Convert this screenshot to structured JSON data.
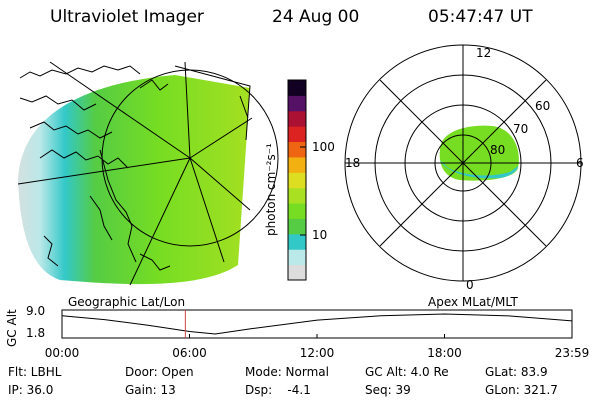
{
  "header": {
    "instrument": "Ultraviolet Imager",
    "date": "24 Aug 00",
    "time": "05:47:47 UT"
  },
  "colorbar": {
    "unit_label": "photon cm⁻²s⁻¹",
    "tick_labels": [
      "100",
      "10"
    ],
    "colors": [
      "#dddddd",
      "#bbe8e8",
      "#33c8c8",
      "#55cc44",
      "#77dd22",
      "#aae022",
      "#dddd22",
      "#f2b011",
      "#ee6611",
      "#dd2222",
      "#aa1133",
      "#551166",
      "#110022"
    ]
  },
  "geo_map": {
    "label": "Geographic Lat/Lon",
    "fill_color": "#77dd22",
    "low_color": "#33c8c8"
  },
  "polar_map": {
    "label": "Apex MLat/MLT",
    "mlt_labels": {
      "top": "12",
      "right": "6",
      "bottom": "0",
      "left": "18"
    },
    "lat_labels": [
      "60",
      "70",
      "80"
    ]
  },
  "altitude_plot": {
    "y_label": "GC Alt",
    "y_ticks": [
      "9.0",
      "1.8"
    ],
    "x_ticks": [
      "00:00",
      "06:00",
      "12:00",
      "18:00",
      "23:59"
    ],
    "marker_color": "#cc4444"
  },
  "chart_data": {
    "type": "line",
    "title": "",
    "xlabel": "",
    "ylabel": "GC Alt",
    "x": [
      0,
      2,
      4,
      6,
      7.2,
      9,
      12,
      15,
      18,
      21,
      23.98
    ],
    "y": [
      8.4,
      7.0,
      5.0,
      2.7,
      1.8,
      3.8,
      6.8,
      8.4,
      9.0,
      8.3,
      6.5
    ],
    "xlim": [
      0,
      23.98
    ],
    "ylim": [
      1.8,
      9.0
    ],
    "marker_x": 5.8
  },
  "footer": {
    "rows": [
      [
        "Flt: LBHL",
        "Door: Open",
        "Mode: Normal",
        "GC Alt: 4.0 Re",
        "GLat: 83.9"
      ],
      [
        "IP: 36.0",
        "Gain: 13",
        "Dsp:    -4.1",
        "Seq: 39",
        "GLon: 321.7"
      ]
    ]
  }
}
